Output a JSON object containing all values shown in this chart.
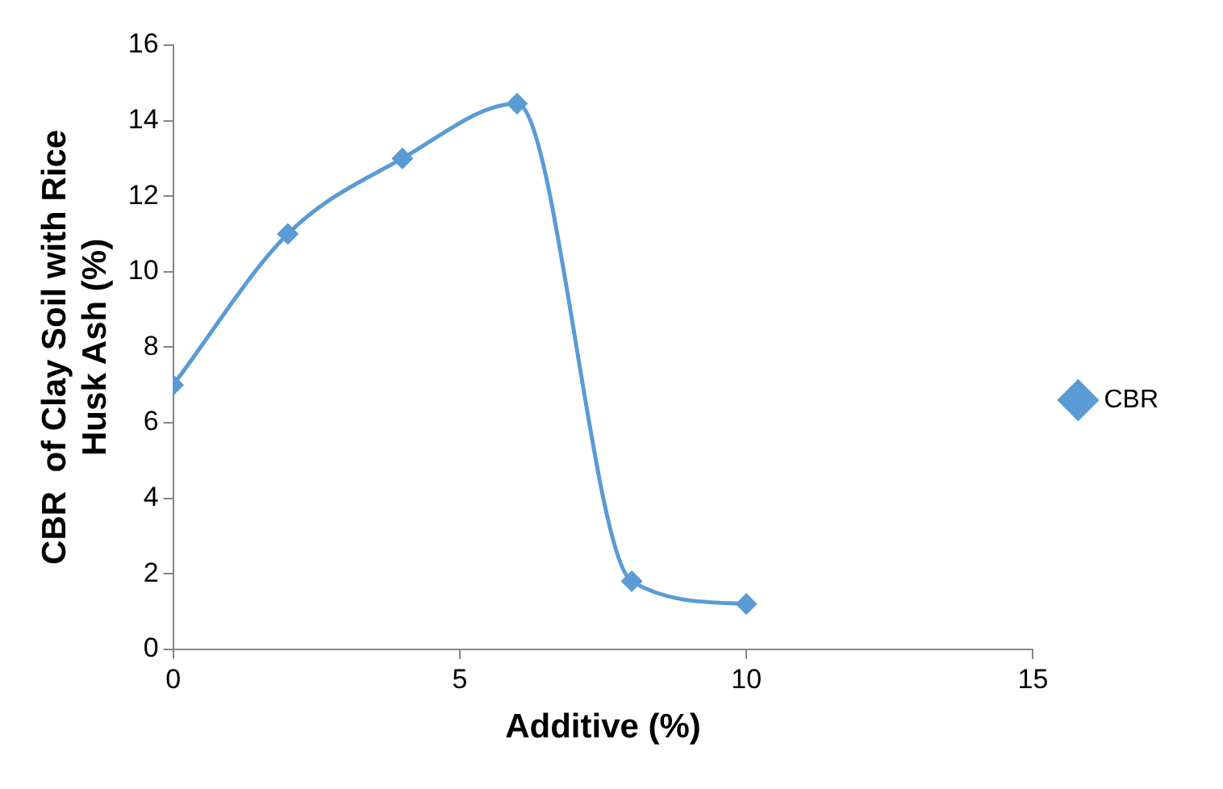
{
  "chart_data": {
    "type": "line",
    "xlabel": "Additive (%)",
    "ylabel": "CBR  of Clay Soil with Rice Husk Ash (%)",
    "x": [
      0,
      2,
      4,
      6,
      8,
      10
    ],
    "series": [
      {
        "name": "CBR",
        "color": "#5b9bd5",
        "values": [
          7,
          11,
          13,
          14.45,
          1.8,
          1.2
        ]
      }
    ],
    "xlim": [
      0,
      15
    ],
    "xticks": [
      0,
      5,
      10,
      15
    ],
    "ylim": [
      0,
      16
    ],
    "yticks": [
      0,
      2,
      4,
      6,
      8,
      10,
      12,
      14,
      16
    ],
    "grid": false,
    "legend": "right",
    "marker": "diamond",
    "line_style": "solid"
  }
}
